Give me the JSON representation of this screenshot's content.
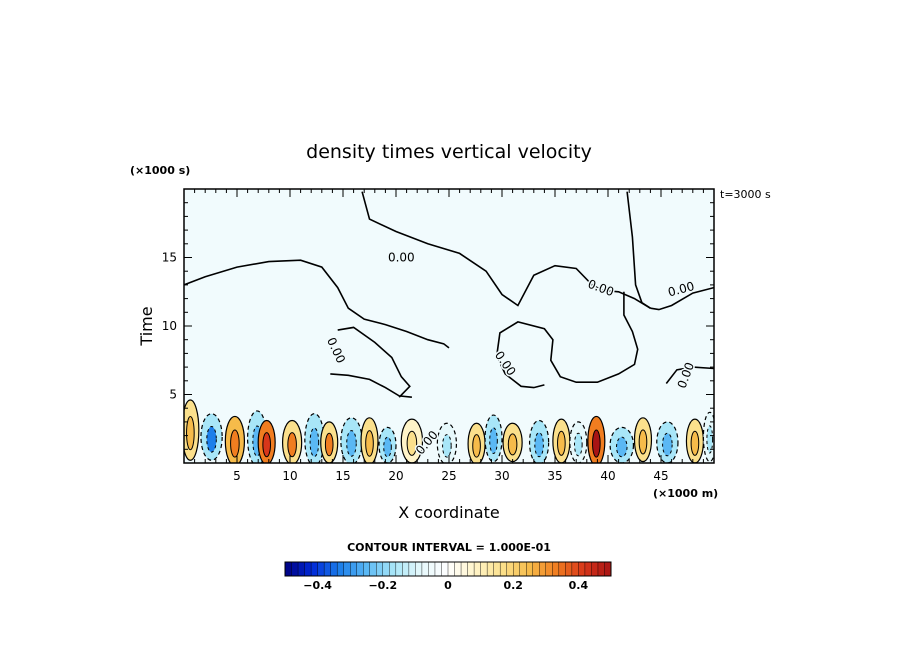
{
  "chart_data": {
    "type": "heatmap",
    "title": "density times vertical velocity",
    "xlabel": "X coordinate",
    "ylabel": "Time",
    "x_unit_label": "(×1000 m)",
    "y_unit_label": "(×1000 s)",
    "time_label": "t=3000 s",
    "xlim": [
      0,
      50
    ],
    "ylim": [
      0,
      20
    ],
    "x_ticks": [
      5,
      10,
      15,
      20,
      25,
      30,
      35,
      40,
      45
    ],
    "y_ticks": [
      5,
      10,
      15
    ],
    "contour_interval_text": "CONTOUR INTERVAL = 1.000E-01",
    "contour_labels": [
      "0.00",
      "0.00",
      "0.00",
      "0.00",
      "0.00",
      "0.00",
      "0.00"
    ],
    "colorbar": {
      "range": [
        -0.5,
        0.5
      ],
      "ticks": [
        "−0.4",
        "−0.2",
        "0",
        "0.2",
        "0.4"
      ],
      "tick_values": [
        -0.4,
        -0.2,
        0,
        0.2,
        0.4
      ],
      "colors": [
        "#00007f",
        "#0028d8",
        "#1c7eea",
        "#5ab8f4",
        "#a8e6f8",
        "#e6f8fb",
        "#ffffff",
        "#fff4c8",
        "#fbe08c",
        "#f6bb4a",
        "#f07d20",
        "#d8361a",
        "#a81414"
      ]
    },
    "zero_contour_polylines": [
      [
        [
          0,
          13.0
        ],
        [
          2,
          13.6
        ],
        [
          5,
          14.3
        ],
        [
          8,
          14.7
        ],
        [
          11,
          14.8
        ],
        [
          13,
          14.3
        ],
        [
          14.5,
          12.8
        ],
        [
          15.5,
          11.3
        ],
        [
          17,
          10.5
        ],
        [
          19,
          10.1
        ],
        [
          21,
          9.6
        ],
        [
          23,
          9.0
        ],
        [
          24.5,
          8.7
        ],
        [
          25,
          8.4
        ]
      ],
      [
        [
          16.8,
          19.8
        ],
        [
          17.5,
          17.8
        ],
        [
          20,
          16.9
        ],
        [
          23,
          16.0
        ],
        [
          26,
          15.3
        ],
        [
          28.5,
          14.0
        ],
        [
          30,
          12.3
        ],
        [
          31.5,
          11.5
        ],
        [
          33,
          13.7
        ],
        [
          35,
          14.4
        ],
        [
          37,
          14.2
        ],
        [
          38.5,
          13.0
        ],
        [
          39.5,
          12.6
        ],
        [
          41,
          12.5
        ],
        [
          42.5,
          12.0
        ],
        [
          44,
          11.3
        ]
      ],
      [
        [
          44,
          11.3
        ],
        [
          44.8,
          11.2
        ],
        [
          46,
          11.5
        ],
        [
          48,
          12.4
        ],
        [
          50,
          12.8
        ]
      ],
      [
        [
          41.8,
          19.8
        ],
        [
          42.3,
          16.5
        ],
        [
          42.6,
          13.0
        ],
        [
          43.2,
          11.7
        ],
        [
          44,
          11.3
        ]
      ],
      [
        [
          14.5,
          9.7
        ],
        [
          16,
          9.9
        ],
        [
          18,
          8.8
        ],
        [
          19.6,
          7.7
        ],
        [
          20.5,
          6.3
        ],
        [
          21.3,
          5.6
        ],
        [
          20.3,
          4.8
        ]
      ],
      [
        [
          13.8,
          6.5
        ],
        [
          15.5,
          6.4
        ],
        [
          17.5,
          6.1
        ],
        [
          19,
          5.5
        ],
        [
          20.3,
          4.9
        ],
        [
          21.5,
          4.8
        ]
      ],
      [
        [
          29.5,
          7.8
        ],
        [
          29.8,
          9.5
        ],
        [
          31.5,
          10.3
        ],
        [
          34,
          9.8
        ],
        [
          34.8,
          9.0
        ],
        [
          34.6,
          7.5
        ],
        [
          35.5,
          6.3
        ],
        [
          37,
          5.9
        ],
        [
          39,
          5.9
        ],
        [
          41,
          6.5
        ],
        [
          42.5,
          7.2
        ],
        [
          42.8,
          8.3
        ],
        [
          42.3,
          9.6
        ],
        [
          41.5,
          10.8
        ],
        [
          41.5,
          12.5
        ]
      ],
      [
        [
          29.5,
          7.8
        ],
        [
          30.3,
          6.5
        ],
        [
          31.8,
          5.6
        ],
        [
          33,
          5.5
        ],
        [
          34,
          5.7
        ]
      ],
      [
        [
          45.5,
          5.8
        ],
        [
          46.5,
          6.8
        ],
        [
          48,
          7.0
        ],
        [
          50,
          6.9
        ]
      ]
    ],
    "cell_blobs": [
      {
        "x": 0.6,
        "y": 2.4,
        "rx": 0.8,
        "ry": 2.2,
        "v": 0.16
      },
      {
        "x": 2.6,
        "y": 1.9,
        "rx": 1.0,
        "ry": 1.7,
        "v": -0.2
      },
      {
        "x": 4.8,
        "y": 1.6,
        "rx": 0.9,
        "ry": 1.8,
        "v": 0.22
      },
      {
        "x": 6.9,
        "y": 1.8,
        "rx": 0.9,
        "ry": 2.0,
        "v": -0.17
      },
      {
        "x": 7.8,
        "y": 1.5,
        "rx": 0.8,
        "ry": 1.6,
        "v": 0.3
      },
      {
        "x": 10.2,
        "y": 1.5,
        "rx": 0.9,
        "ry": 1.6,
        "v": 0.2
      },
      {
        "x": 12.3,
        "y": 1.7,
        "rx": 0.9,
        "ry": 1.9,
        "v": -0.14
      },
      {
        "x": 13.7,
        "y": 1.5,
        "rx": 0.8,
        "ry": 1.5,
        "v": 0.2
      },
      {
        "x": 15.8,
        "y": 1.6,
        "rx": 1.0,
        "ry": 1.7,
        "v": -0.18
      },
      {
        "x": 17.5,
        "y": 1.6,
        "rx": 0.8,
        "ry": 1.7,
        "v": 0.16
      },
      {
        "x": 19.2,
        "y": 1.3,
        "rx": 0.8,
        "ry": 1.3,
        "v": -0.15
      },
      {
        "x": 21.5,
        "y": 1.6,
        "rx": 1.0,
        "ry": 1.6,
        "v": 0.12
      },
      {
        "x": 24.8,
        "y": 1.4,
        "rx": 0.9,
        "ry": 1.5,
        "v": -0.12
      },
      {
        "x": 27.6,
        "y": 1.4,
        "rx": 0.8,
        "ry": 1.5,
        "v": 0.14
      },
      {
        "x": 29.2,
        "y": 1.8,
        "rx": 0.8,
        "ry": 1.7,
        "v": -0.14
      },
      {
        "x": 31.0,
        "y": 1.5,
        "rx": 0.9,
        "ry": 1.4,
        "v": 0.16
      },
      {
        "x": 33.5,
        "y": 1.5,
        "rx": 0.9,
        "ry": 1.6,
        "v": -0.14
      },
      {
        "x": 35.6,
        "y": 1.6,
        "rx": 0.8,
        "ry": 1.6,
        "v": 0.16
      },
      {
        "x": 37.2,
        "y": 1.5,
        "rx": 0.8,
        "ry": 1.5,
        "v": -0.12
      },
      {
        "x": 38.9,
        "y": 1.6,
        "rx": 0.8,
        "ry": 1.8,
        "v": 0.32
      },
      {
        "x": 41.3,
        "y": 1.3,
        "rx": 1.1,
        "ry": 1.3,
        "v": -0.16
      },
      {
        "x": 43.3,
        "y": 1.7,
        "rx": 0.8,
        "ry": 1.6,
        "v": 0.14
      },
      {
        "x": 45.6,
        "y": 1.5,
        "rx": 1.0,
        "ry": 1.5,
        "v": -0.18
      },
      {
        "x": 48.2,
        "y": 1.6,
        "rx": 0.8,
        "ry": 1.6,
        "v": 0.14
      },
      {
        "x": 49.6,
        "y": 1.9,
        "rx": 0.6,
        "ry": 1.8,
        "v": -0.12
      }
    ]
  }
}
